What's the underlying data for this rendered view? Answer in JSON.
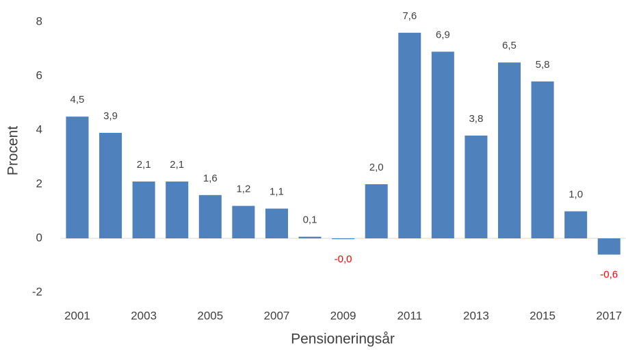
{
  "chart_data": {
    "type": "bar",
    "x_label": "Pensioneringsår",
    "y_label": "Procent",
    "categories": [
      "2001",
      null,
      "2003",
      null,
      "2005",
      null,
      "2007",
      null,
      "2009",
      null,
      "2011",
      null,
      "2013",
      null,
      "2015",
      null,
      "2017"
    ],
    "values": [
      4.5,
      3.9,
      2.1,
      2.1,
      1.6,
      1.2,
      1.1,
      0.06,
      -0.03,
      2.0,
      7.6,
      6.9,
      3.8,
      6.5,
      5.8,
      1.0,
      -0.6
    ],
    "value_labels": [
      "4,5",
      "3,9",
      "2,1",
      "2,1",
      "1,6",
      "1,2",
      "1,1",
      "0,1",
      "-0,0",
      "2,0",
      "7,6",
      "6,9",
      "3,8",
      "6,5",
      "5,8",
      "1,0",
      "-0,6"
    ],
    "color": "#4f81bd",
    "negative_label_color": "#ff0000",
    "ylim": [
      -2,
      8
    ],
    "yticks": [
      -2,
      0,
      2,
      4,
      6,
      8
    ],
    "grid": false
  }
}
